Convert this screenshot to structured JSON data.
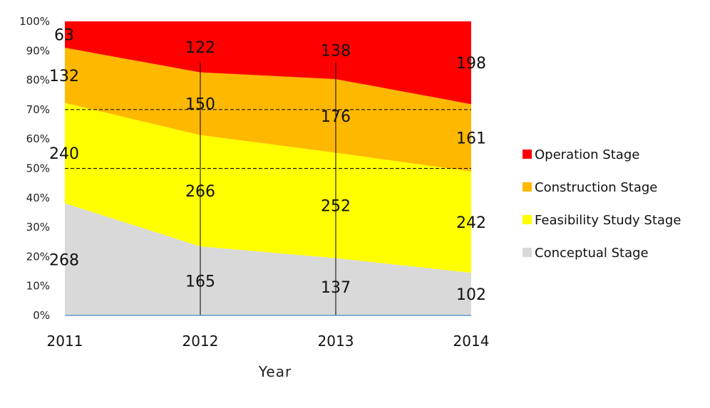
{
  "chart_data": {
    "type": "area",
    "stacked": "percent",
    "xlabel": "Year",
    "x": [
      "2011",
      "2012",
      "2013",
      "2014"
    ],
    "y_ticks": [
      "0%",
      "10%",
      "20%",
      "30%",
      "40%",
      "50%",
      "60%",
      "70%",
      "80%",
      "90%",
      "100%"
    ],
    "ylim": [
      0,
      100
    ],
    "legend_position": "right",
    "reference_lines": [
      50,
      70
    ],
    "series": [
      {
        "name": "Conceptual Stage",
        "values": [
          268,
          165,
          137,
          102
        ],
        "color": "#d9d9d9"
      },
      {
        "name": "Feasibility Study Stage",
        "values": [
          240,
          266,
          252,
          242
        ],
        "color": "#ffff00"
      },
      {
        "name": "Construction Stage",
        "values": [
          132,
          150,
          176,
          161
        ],
        "color": "#ffb800"
      },
      {
        "name": "Operation Stage",
        "values": [
          63,
          122,
          138,
          198
        ],
        "color": "#ff0000"
      }
    ]
  }
}
